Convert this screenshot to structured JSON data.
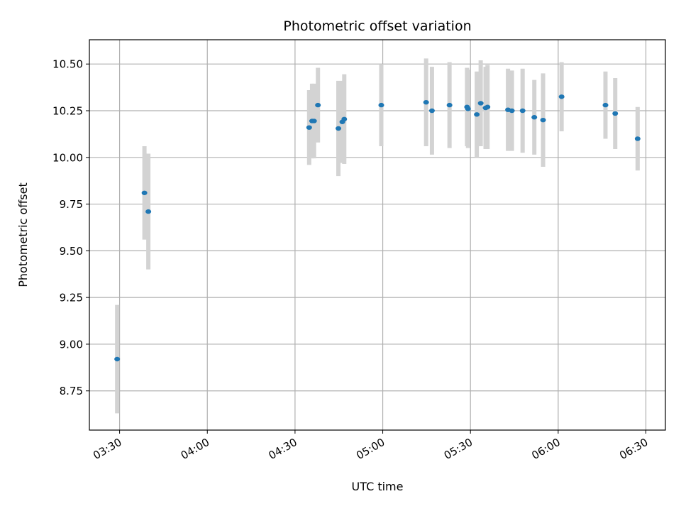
{
  "chart_data": {
    "type": "scatter",
    "title": "Photometric offset variation",
    "xlabel": "UTC time",
    "ylabel": "Photometric offset",
    "x_ticks": [
      "03:30",
      "04:00",
      "04:30",
      "05:00",
      "05:30",
      "06:00",
      "06:30"
    ],
    "y_ticks": [
      "8.75",
      "9.00",
      "9.25",
      "9.50",
      "9.75",
      "10.00",
      "10.25",
      "10.50"
    ],
    "xlim": [
      "03:19:40",
      "06:36:40"
    ],
    "ylim": [
      8.54,
      10.63
    ],
    "grid": true,
    "colors": {
      "point": "#1f77b4",
      "errorbar": "#d3d3d3",
      "grid": "#b0b0b0"
    },
    "points": [
      {
        "x": "03:29:10",
        "y": 8.92,
        "err": 0.29
      },
      {
        "x": "03:38:30",
        "y": 9.81,
        "err": 0.25
      },
      {
        "x": "03:39:50",
        "y": 9.71,
        "err": 0.31
      },
      {
        "x": "04:34:50",
        "y": 10.16,
        "err": 0.2
      },
      {
        "x": "04:35:50",
        "y": 10.195,
        "err": 0.2
      },
      {
        "x": "04:36:30",
        "y": 10.195,
        "err": 0.2
      },
      {
        "x": "04:37:50",
        "y": 10.28,
        "err": 0.2
      },
      {
        "x": "04:44:50",
        "y": 10.155,
        "err": 0.255
      },
      {
        "x": "04:46:10",
        "y": 10.19,
        "err": 0.22
      },
      {
        "x": "04:46:50",
        "y": 10.205,
        "err": 0.24
      },
      {
        "x": "04:59:30",
        "y": 10.28,
        "err": 0.22
      },
      {
        "x": "05:14:50",
        "y": 10.295,
        "err": 0.235
      },
      {
        "x": "05:16:50",
        "y": 10.25,
        "err": 0.235
      },
      {
        "x": "05:22:50",
        "y": 10.28,
        "err": 0.23
      },
      {
        "x": "05:28:50",
        "y": 10.27,
        "err": 0.21
      },
      {
        "x": "05:29:10",
        "y": 10.26,
        "err": 0.21
      },
      {
        "x": "05:32:10",
        "y": 10.23,
        "err": 0.23
      },
      {
        "x": "05:33:30",
        "y": 10.29,
        "err": 0.23
      },
      {
        "x": "05:35:10",
        "y": 10.265,
        "err": 0.22
      },
      {
        "x": "05:35:50",
        "y": 10.27,
        "err": 0.225
      },
      {
        "x": "05:42:50",
        "y": 10.255,
        "err": 0.22
      },
      {
        "x": "05:44:10",
        "y": 10.25,
        "err": 0.215
      },
      {
        "x": "05:47:50",
        "y": 10.25,
        "err": 0.225
      },
      {
        "x": "05:51:50",
        "y": 10.215,
        "err": 0.2
      },
      {
        "x": "05:54:50",
        "y": 10.2,
        "err": 0.25
      },
      {
        "x": "06:01:10",
        "y": 10.325,
        "err": 0.185
      },
      {
        "x": "06:16:10",
        "y": 10.28,
        "err": 0.18
      },
      {
        "x": "06:19:30",
        "y": 10.235,
        "err": 0.19
      },
      {
        "x": "06:27:10",
        "y": 10.1,
        "err": 0.17
      }
    ]
  }
}
